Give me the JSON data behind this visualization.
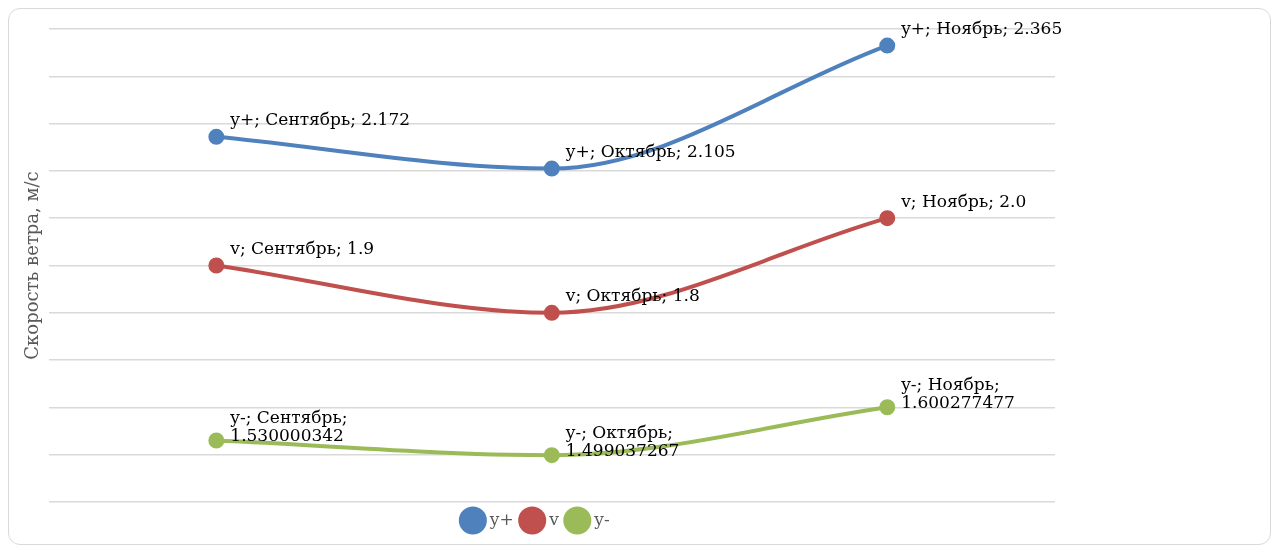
{
  "chart_data": {
    "type": "line",
    "ylabel": "Скорость ветра, м/с",
    "categories": [
      null,
      null,
      null
    ],
    "series": [
      {
        "name": "y+",
        "color": "#4f81bd",
        "values": [
          2.172,
          2.105,
          2.365
        ],
        "value_labels": [
          "y+; Сентябрь; 2.172",
          "y+; Октябрь; 2.105",
          "y+; Ноябрь; 2.365"
        ]
      },
      {
        "name": "v",
        "color": "#c0504d",
        "values": [
          1.9,
          1.8,
          2.0
        ],
        "value_labels": [
          "v; Сентябрь; 1.9",
          "v; Октябрь; 1.8",
          "v; Ноябрь; 2.0"
        ]
      },
      {
        "name": "y-",
        "color": "#9bbb59",
        "values": [
          1.530000342,
          1.499037267,
          1.600277477
        ],
        "value_labels": [
          "y-; Сентябрь; 1.530000342",
          "y-; Октябрь; 1.499037267",
          "y-; Ноябрь; 1.600277477"
        ]
      }
    ],
    "tick_labels": false,
    "grid": "y",
    "legend": "bottom",
    "marker": "circle",
    "line_style": "solid"
  }
}
